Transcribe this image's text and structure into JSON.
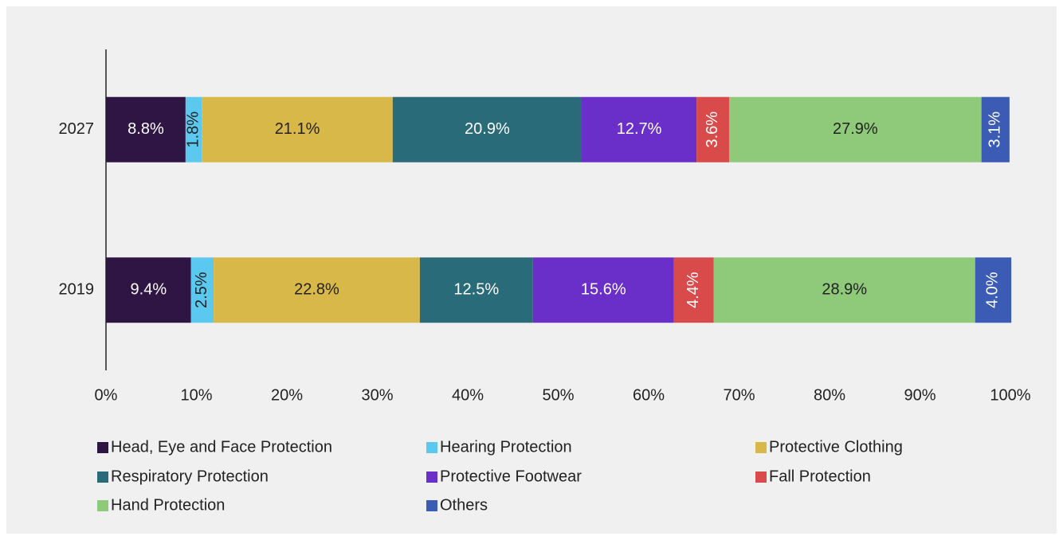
{
  "chart_data": {
    "type": "stacked_bar_horizontal",
    "categories": [
      "2027",
      "2019"
    ],
    "series": [
      {
        "name": "Head, Eye and Face Protection",
        "color": "#2e1544",
        "values": [
          8.8,
          9.4
        ],
        "value_labels": [
          "8.8%",
          "9.4%"
        ]
      },
      {
        "name": "Hearing Protection",
        "color": "#5bc8f0",
        "values": [
          1.8,
          2.5
        ],
        "value_labels": [
          "1.8%",
          "2.5%"
        ]
      },
      {
        "name": "Protective Clothing",
        "color": "#d9b84a",
        "values": [
          21.1,
          22.8
        ],
        "value_labels": [
          "21.1%",
          "22.8%"
        ]
      },
      {
        "name": "Respiratory Protection",
        "color": "#2a6b7a",
        "values": [
          20.9,
          12.5
        ],
        "value_labels": [
          "20.9%",
          "12.5%"
        ]
      },
      {
        "name": "Protective Footwear",
        "color": "#6a2fc9",
        "values": [
          12.7,
          15.6
        ],
        "value_labels": [
          "12.7%",
          "15.6%"
        ]
      },
      {
        "name": "Fall Protection",
        "color": "#d94b4b",
        "values": [
          3.6,
          4.4
        ],
        "value_labels": [
          "3.6%",
          "4.4%"
        ]
      },
      {
        "name": "Hand Protection",
        "color": "#8fc97a",
        "values": [
          27.9,
          28.9
        ],
        "value_labels": [
          "27.9%",
          "28.9%"
        ]
      },
      {
        "name": "Others",
        "color": "#3b5bb5",
        "values": [
          3.1,
          4.0
        ],
        "value_labels": [
          "3.1%",
          "4.0%"
        ]
      }
    ],
    "xlim": [
      0,
      100
    ],
    "xticks": [
      {
        "value": 0,
        "label": "0%"
      },
      {
        "value": 10,
        "label": "10%"
      },
      {
        "value": 20,
        "label": "20%"
      },
      {
        "value": 30,
        "label": "30%"
      },
      {
        "value": 40,
        "label": "40%"
      },
      {
        "value": 50,
        "label": "50%"
      },
      {
        "value": 60,
        "label": "60%"
      },
      {
        "value": 70,
        "label": "70%"
      },
      {
        "value": 80,
        "label": "80%"
      },
      {
        "value": 90,
        "label": "90%"
      },
      {
        "value": 100,
        "label": "100%"
      }
    ],
    "legend": "bottom"
  }
}
